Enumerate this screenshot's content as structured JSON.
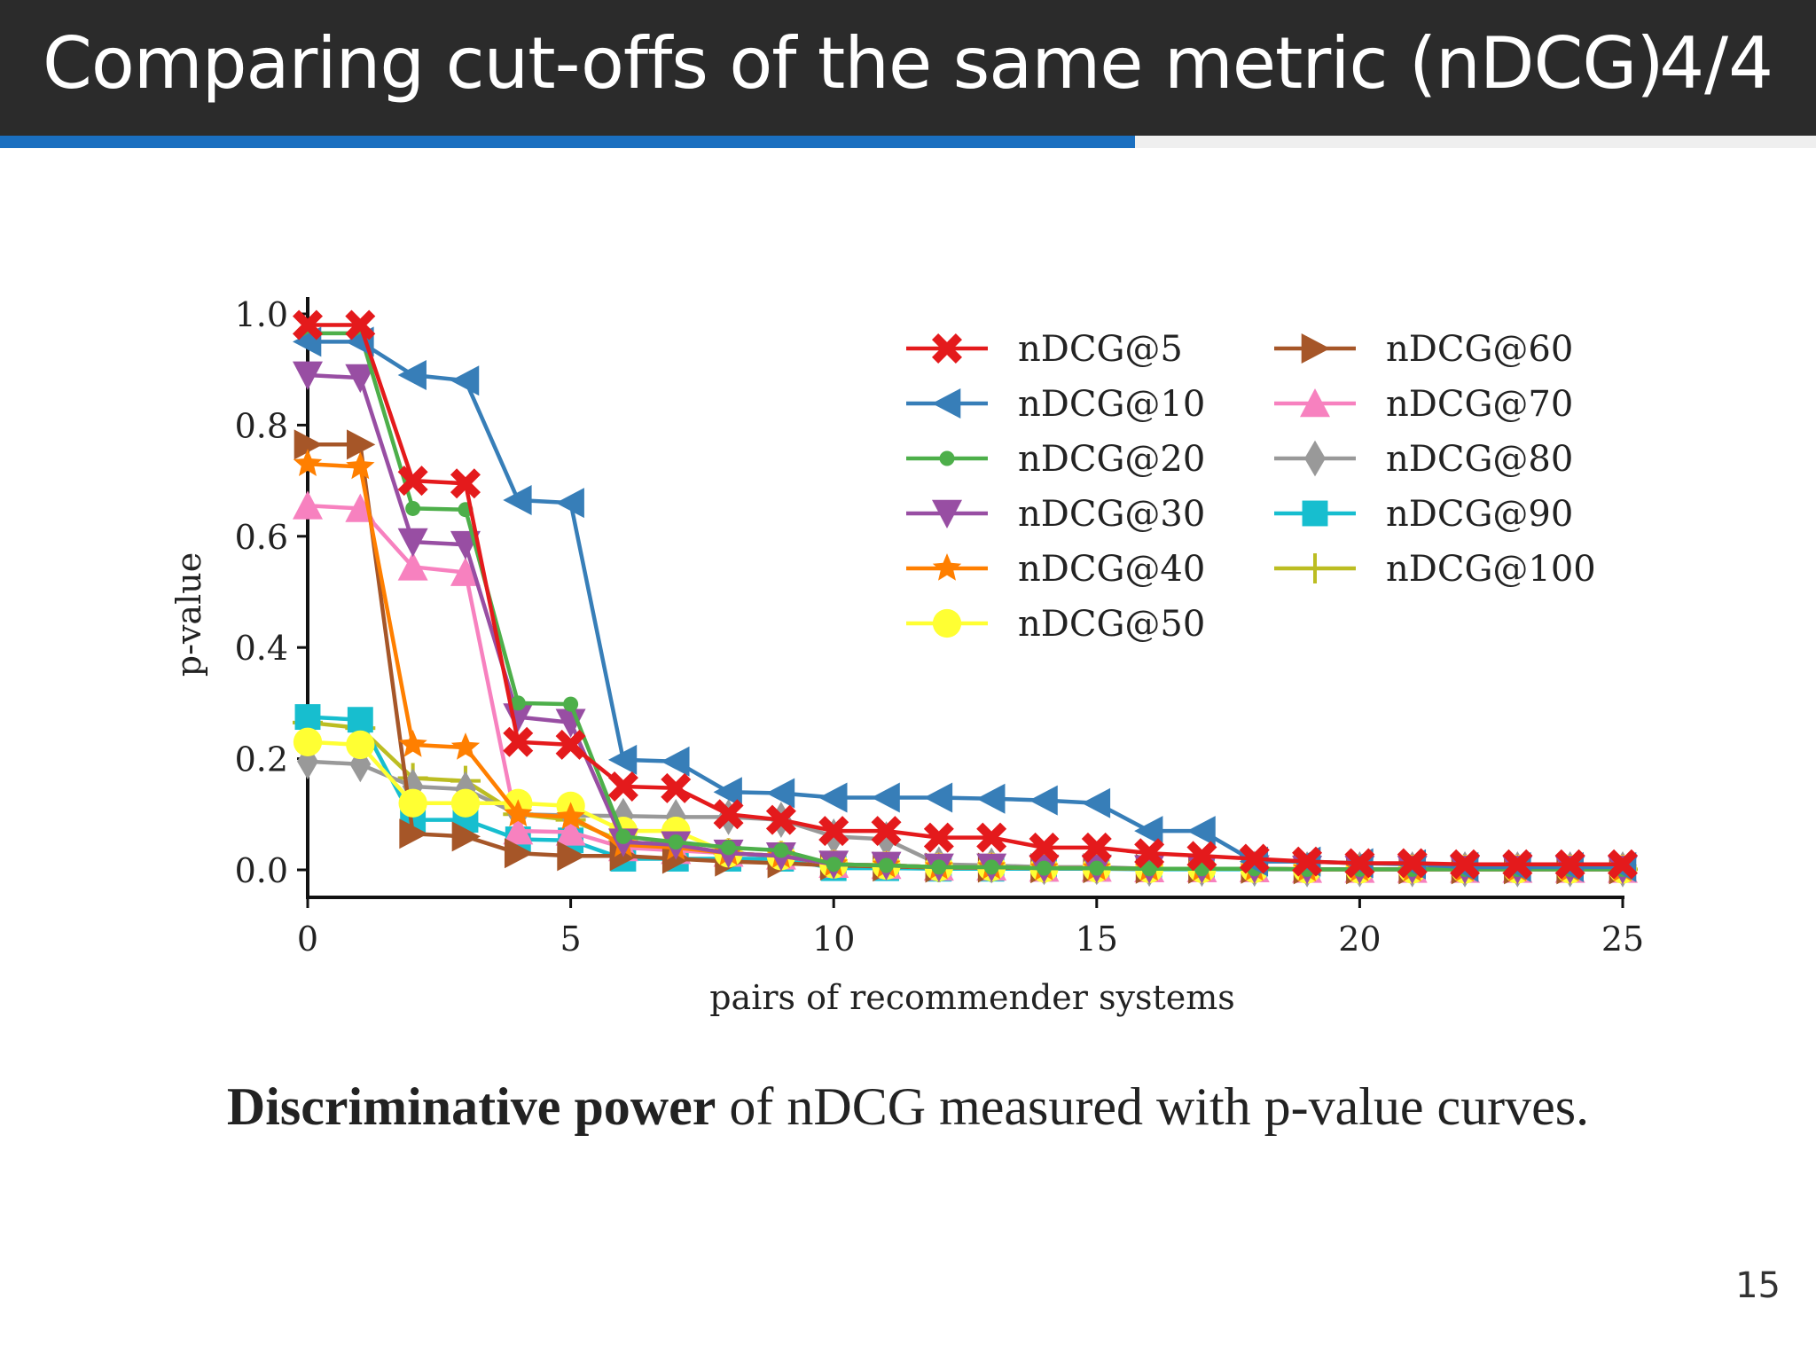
{
  "header": {
    "title": "Comparing cut-offs of the same metric (nDCG)",
    "page": "4/4",
    "progress_fraction": 0.625
  },
  "caption": {
    "bold": "Discriminative power",
    "rest": " of nDCG measured with p-value curves."
  },
  "slide_number": "15",
  "chart_data": {
    "type": "line",
    "xlabel": "pairs of recommender systems",
    "ylabel": "p-value",
    "xlim": [
      0,
      25
    ],
    "ylim": [
      -0.05,
      1.03
    ],
    "xticks": [
      0,
      5,
      10,
      15,
      20,
      25
    ],
    "xtick_labels": [
      "0",
      "5",
      "10",
      "15",
      "20",
      "25"
    ],
    "yticks": [
      0.0,
      0.2,
      0.4,
      0.6,
      0.8,
      1.0
    ],
    "ytick_labels": [
      "0.0",
      "0.2",
      "0.4",
      "0.6",
      "0.8",
      "1.0"
    ],
    "grid": false,
    "legend": "top-right, two columns",
    "x": [
      0,
      1,
      2,
      3,
      4,
      5,
      6,
      7,
      8,
      9,
      10,
      11,
      12,
      13,
      14,
      15,
      16,
      17,
      18,
      19,
      20,
      21,
      22,
      23,
      24,
      25
    ],
    "series": [
      {
        "name": "nDCG@5",
        "color": "#e41a1c",
        "marker": "x-fat",
        "values": [
          0.98,
          0.98,
          0.7,
          0.695,
          0.23,
          0.225,
          0.15,
          0.147,
          0.1,
          0.09,
          0.07,
          0.07,
          0.058,
          0.058,
          0.04,
          0.04,
          0.03,
          0.025,
          0.02,
          0.015,
          0.012,
          0.012,
          0.01,
          0.01,
          0.01,
          0.01
        ]
      },
      {
        "name": "nDCG@10",
        "color": "#377eb8",
        "marker": "triangle-left",
        "values": [
          0.95,
          0.95,
          0.89,
          0.88,
          0.665,
          0.66,
          0.198,
          0.195,
          0.14,
          0.138,
          0.13,
          0.13,
          0.13,
          0.128,
          0.125,
          0.12,
          0.07,
          0.07,
          0.015,
          0.015,
          0.012,
          0.01,
          0.005,
          0.005,
          0.005,
          0.005
        ]
      },
      {
        "name": "nDCG@20",
        "color": "#4daf4a",
        "marker": "dot",
        "values": [
          0.965,
          0.965,
          0.65,
          0.648,
          0.3,
          0.298,
          0.06,
          0.05,
          0.04,
          0.035,
          0.01,
          0.008,
          0.005,
          0.005,
          0.003,
          0.003,
          0.002,
          0.002,
          0.002,
          0.001,
          0.001,
          0.001,
          0.001,
          0.001,
          0.001,
          0.001
        ]
      },
      {
        "name": "nDCG@30",
        "color": "#984ea3",
        "marker": "triangle-down",
        "values": [
          0.89,
          0.885,
          0.59,
          0.585,
          0.275,
          0.265,
          0.05,
          0.045,
          0.03,
          0.025,
          0.01,
          0.008,
          0.005,
          0.005,
          0.003,
          0.003,
          0.002,
          0.002,
          0.002,
          0.001,
          0.001,
          0.001,
          0.001,
          0.001,
          0.001,
          0.001
        ]
      },
      {
        "name": "nDCG@40",
        "color": "#ff7f00",
        "marker": "star",
        "values": [
          0.73,
          0.725,
          0.225,
          0.22,
          0.1,
          0.095,
          0.045,
          0.04,
          0.03,
          0.025,
          0.01,
          0.008,
          0.005,
          0.005,
          0.003,
          0.003,
          0.002,
          0.002,
          0.002,
          0.001,
          0.001,
          0.001,
          0.001,
          0.001,
          0.001,
          0.001
        ]
      },
      {
        "name": "nDCG@50",
        "color": "#ffff33",
        "marker": "circle",
        "values": [
          0.23,
          0.225,
          0.12,
          0.12,
          0.12,
          0.115,
          0.07,
          0.07,
          0.03,
          0.025,
          0.01,
          0.008,
          0.005,
          0.005,
          0.003,
          0.003,
          0.002,
          0.002,
          0.002,
          0.001,
          0.001,
          0.001,
          0.001,
          0.001,
          0.001,
          0.001
        ]
      },
      {
        "name": "nDCG@60",
        "color": "#a65628",
        "marker": "triangle-right",
        "values": [
          0.765,
          0.765,
          0.065,
          0.06,
          0.03,
          0.025,
          0.025,
          0.02,
          0.015,
          0.012,
          0.008,
          0.006,
          0.004,
          0.004,
          0.003,
          0.003,
          0.002,
          0.002,
          0.002,
          0.001,
          0.001,
          0.001,
          0.001,
          0.001,
          0.001,
          0.001
        ]
      },
      {
        "name": "nDCG@70",
        "color": "#f781bf",
        "marker": "triangle-up",
        "values": [
          0.655,
          0.65,
          0.545,
          0.535,
          0.07,
          0.068,
          0.04,
          0.035,
          0.03,
          0.025,
          0.01,
          0.008,
          0.005,
          0.005,
          0.003,
          0.003,
          0.002,
          0.002,
          0.002,
          0.001,
          0.001,
          0.001,
          0.001,
          0.001,
          0.001,
          0.001
        ]
      },
      {
        "name": "nDCG@80",
        "color": "#999999",
        "marker": "diamond",
        "values": [
          0.195,
          0.19,
          0.15,
          0.145,
          0.1,
          0.098,
          0.097,
          0.095,
          0.095,
          0.09,
          0.06,
          0.055,
          0.01,
          0.008,
          0.005,
          0.005,
          0.002,
          0.002,
          0.002,
          0.001,
          0.001,
          0.001,
          0.001,
          0.001,
          0.001,
          0.001
        ]
      },
      {
        "name": "nDCG@90",
        "color": "#17becf",
        "marker": "square",
        "values": [
          0.275,
          0.27,
          0.09,
          0.09,
          0.055,
          0.053,
          0.02,
          0.02,
          0.02,
          0.02,
          0.003,
          0.003,
          0.002,
          0.002,
          0.002,
          0.002,
          0.001,
          0.001,
          0.001,
          0.001,
          0.001,
          0.001,
          0.001,
          0.001,
          0.001,
          0.001
        ]
      },
      {
        "name": "nDCG@100",
        "color": "#bcbd22",
        "marker": "plus",
        "values": [
          0.265,
          0.255,
          0.165,
          0.16,
          0.1,
          0.09,
          0.05,
          0.045,
          0.03,
          0.025,
          0.01,
          0.008,
          0.005,
          0.005,
          0.003,
          0.003,
          0.002,
          0.002,
          0.002,
          0.001,
          0.001,
          0.001,
          0.001,
          0.001,
          0.001,
          0.001
        ]
      }
    ]
  }
}
